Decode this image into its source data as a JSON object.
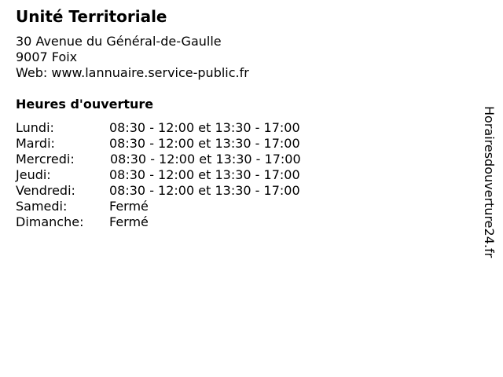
{
  "title": "Unité Territoriale",
  "address": {
    "street": "30 Avenue du Général-de-Gaulle",
    "city": "9007 Foix",
    "web": "Web: www.lannuaire.service-public.fr"
  },
  "hours_heading": "Heures d'ouverture",
  "hours": [
    {
      "day": "Lundi:",
      "time": "08:30 - 12:00 et 13:30 - 17:00"
    },
    {
      "day": "Mardi:",
      "time": "08:30 - 12:00 et 13:30 - 17:00"
    },
    {
      "day": "Mercredi:",
      "time": "08:30 - 12:00 et 13:30 - 17:00"
    },
    {
      "day": "Jeudi:",
      "time": "08:30 - 12:00 et 13:30 - 17:00"
    },
    {
      "day": "Vendredi:",
      "time": "08:30 - 12:00 et 13:30 - 17:00"
    },
    {
      "day": "Samedi:",
      "time": "Fermé"
    },
    {
      "day": "Dimanche:",
      "time": "Fermé"
    }
  ],
  "watermark": "Horairesdouverture24.fr"
}
